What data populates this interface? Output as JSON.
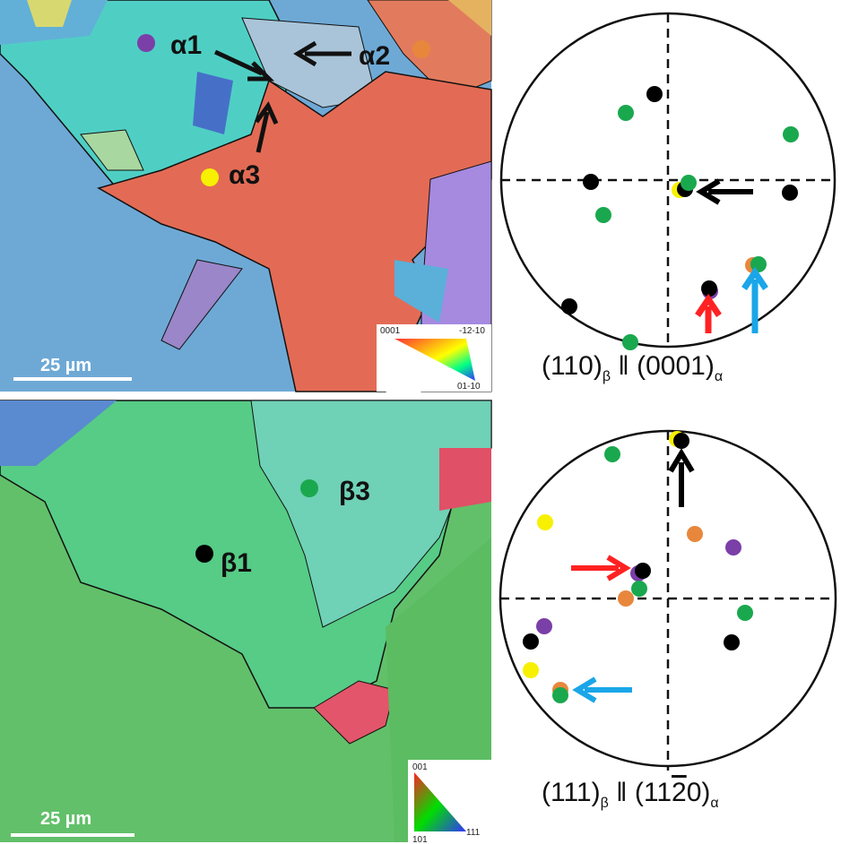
{
  "top_map": {
    "labels": [
      "α1",
      "α2",
      "α3"
    ],
    "scale_bar": "25 µm",
    "legend": {
      "top_left": "0001",
      "top_right": "-12-10",
      "bottom_right": "01-10"
    }
  },
  "top_pole_figure": {
    "caption": {
      "plane_beta": "(110)",
      "beta": "β",
      "parallel": "‖",
      "plane_alpha": "(0001)",
      "alpha": "α"
    }
  },
  "bottom_map": {
    "labels": [
      "β1",
      "β3"
    ],
    "scale_bar": "25 µm",
    "legend": {
      "top_left": "001",
      "bottom_left": "101",
      "bottom_right": "111"
    }
  },
  "bottom_pole_figure": {
    "caption": {
      "plane_beta": "(111)",
      "beta": "β",
      "parallel": "‖",
      "plane_alpha_start": "(11",
      "plane_alpha_bar": "2",
      "plane_alpha_end": "0)",
      "alpha": "α"
    }
  }
}
